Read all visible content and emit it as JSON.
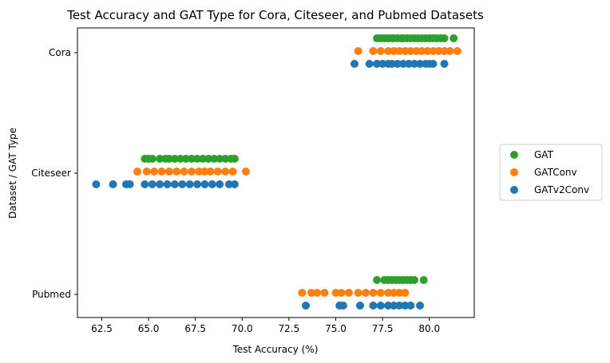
{
  "chart_data": {
    "type": "scatter",
    "title": "Test Accuracy and GAT Type for Cora, Citeseer, and Pubmed Datasets",
    "xlabel": "Test Accuracy (%)",
    "ylabel": "Dataset / GAT Type",
    "xlim": [
      61.2,
      82.4
    ],
    "x_ticks": [
      62.5,
      65.0,
      67.5,
      70.0,
      72.5,
      75.0,
      77.5,
      80.0
    ],
    "x_tick_labels": [
      "62.5",
      "65.0",
      "67.5",
      "70.0",
      "72.5",
      "75.0",
      "77.5",
      "80.0"
    ],
    "categories": [
      "Cora",
      "Citeseer",
      "Pubmed"
    ],
    "legend_position": "right",
    "grid": false,
    "series": [
      {
        "name": "GAT",
        "color": "#2ca02c",
        "points": [
          {
            "category": "Cora",
            "values": [
              77.2,
              77.4,
              77.6,
              77.8,
              78.0,
              78.1,
              78.3,
              78.5,
              78.6,
              78.8,
              79.0,
              79.2,
              79.4,
              79.6,
              79.8,
              80.0,
              80.2,
              80.4,
              80.6,
              80.8,
              81.3
            ]
          },
          {
            "category": "Citeseer",
            "values": [
              64.8,
              65.0,
              65.2,
              65.6,
              65.9,
              66.1,
              66.4,
              66.7,
              67.0,
              67.3,
              67.6,
              67.9,
              68.2,
              68.5,
              68.8,
              69.1,
              69.4,
              69.6
            ]
          },
          {
            "category": "Pubmed",
            "values": [
              77.2,
              77.6,
              77.8,
              78.0,
              78.2,
              78.4,
              78.6,
              78.8,
              79.0,
              79.2,
              79.7
            ]
          }
        ]
      },
      {
        "name": "GATConv",
        "color": "#ff7f0e",
        "points": [
          {
            "category": "Cora",
            "values": [
              76.2,
              77.0,
              77.4,
              77.8,
              78.1,
              78.4,
              78.7,
              79.0,
              79.3,
              79.6,
              79.9,
              80.2,
              80.5,
              80.8,
              81.1,
              81.5
            ]
          },
          {
            "category": "Citeseer",
            "values": [
              64.4,
              64.9,
              65.3,
              65.7,
              66.1,
              66.5,
              66.9,
              67.3,
              67.7,
              68.0,
              68.3,
              68.7,
              69.1,
              69.5,
              70.2
            ]
          },
          {
            "category": "Pubmed",
            "values": [
              73.2,
              73.7,
              74.0,
              74.4,
              75.0,
              75.3,
              75.7,
              76.2,
              76.6,
              77.0,
              77.4,
              77.8,
              78.1,
              78.4,
              78.7
            ]
          }
        ]
      },
      {
        "name": "GATv2Conv",
        "color": "#1f77b4",
        "points": [
          {
            "category": "Cora",
            "values": [
              76.0,
              76.8,
              77.2,
              77.5,
              77.8,
              78.0,
              78.3,
              78.6,
              78.9,
              79.2,
              79.5,
              79.8,
              80.0,
              80.2,
              80.8
            ]
          },
          {
            "category": "Citeseer",
            "values": [
              62.2,
              63.1,
              63.8,
              64.0,
              64.8,
              65.2,
              65.6,
              66.0,
              66.4,
              66.8,
              67.2,
              67.6,
              68.0,
              68.4,
              68.8,
              69.3,
              69.6
            ]
          },
          {
            "category": "Pubmed",
            "values": [
              73.4,
              75.2,
              75.4,
              76.3,
              77.0,
              77.4,
              77.8,
              78.1,
              78.4,
              78.7,
              79.0,
              79.5
            ]
          }
        ]
      }
    ]
  }
}
